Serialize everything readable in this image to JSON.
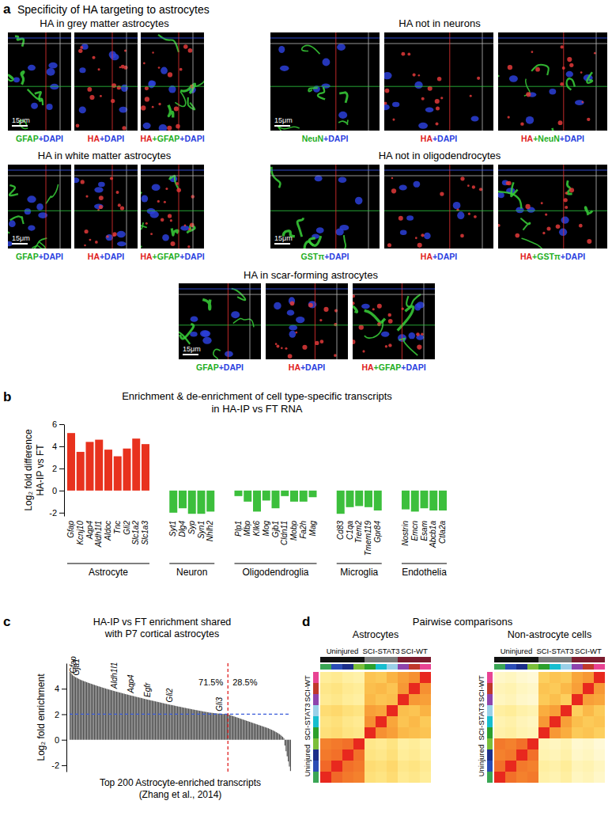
{
  "figure": {
    "letters": [
      "a",
      "b",
      "c",
      "d"
    ],
    "a": {
      "title": "Specificity of HA targeting to astrocytes",
      "scale_bar": "15μm",
      "panels": [
        {
          "title": "HA in grey matter astrocytes",
          "labels": [
            [
              "GFAP",
              "+DAPI"
            ],
            [
              "HA",
              "+DAPI"
            ],
            [
              "HA",
              "+GFAP",
              "+DAPI"
            ]
          ]
        },
        {
          "title": "HA not in neurons",
          "labels": [
            [
              "NeuN",
              "+DAPI"
            ],
            [
              "HA",
              "+DAPI"
            ],
            [
              "HA",
              "+NeuN",
              "+DAPI"
            ]
          ]
        },
        {
          "title": "HA in white matter astrocytes",
          "labels": [
            [
              "GFAP",
              "+DAPI"
            ],
            [
              "HA",
              "+DAPI"
            ],
            [
              "HA",
              "+GFAP",
              "+DAPI"
            ]
          ]
        },
        {
          "title": "HA not in oligodendrocytes",
          "labels": [
            [
              "GSTπ",
              "+DAPI"
            ],
            [
              "HA",
              "+DAPI"
            ],
            [
              "HA",
              "+GSTπ",
              "+DAPI"
            ]
          ]
        },
        {
          "title": "HA in scar-forming astrocytes",
          "labels": [
            [
              "GFAP",
              "+DAPI"
            ],
            [
              "HA",
              "+DAPI"
            ],
            [
              "HA",
              "+GFAP",
              "+DAPI"
            ]
          ]
        }
      ]
    },
    "d_title": "Pairwise comparisons"
  },
  "chart_data": [
    {
      "type": "bar",
      "title": [
        "Enrichment & de-enrichment of cell type-specific transcripts",
        "in HA-IP vs FT RNA"
      ],
      "ylabel": [
        "Log₂ fold difference",
        "HA-IP vs FT"
      ],
      "categories": [
        "Gfap",
        "Kcnj10",
        "Aqp4",
        "Aldh1l1",
        "Aldoc",
        "Tnc",
        "Gli2",
        "Slc1a2",
        "Slc1a3",
        null,
        null,
        "Syt1",
        "Dlg4",
        "Syp",
        "Syn1",
        "Nhlh2",
        null,
        null,
        "Plp1",
        "Mbp",
        "Klk6",
        "Mog",
        "Gjb1",
        "Cldn11",
        "Mobp",
        "Fa2h",
        "Mag",
        null,
        null,
        "Cd83",
        "C1qa",
        "Trem2",
        "Tmem119",
        "Gpr84",
        null,
        null,
        "Nostrin",
        "Emcn",
        "Esam",
        "Abcb1a",
        "Ctla2a"
      ],
      "values": [
        5.2,
        3.5,
        4.4,
        4.6,
        3.7,
        3.1,
        3.8,
        4.7,
        4.2,
        null,
        null,
        -2.0,
        -1.6,
        -2.1,
        -2.1,
        -1.9,
        null,
        null,
        -0.5,
        -1.0,
        -1.9,
        -0.9,
        -1.6,
        -0.5,
        -1.0,
        -1.0,
        -0.6,
        null,
        null,
        -2.1,
        -1.5,
        -1.4,
        -1.5,
        -1.8,
        null,
        null,
        -1.7,
        -1.9,
        -1.6,
        -1.8,
        -1.8
      ],
      "colors": [
        "#e8321e",
        "#e8321e",
        "#e8321e",
        "#e8321e",
        "#e8321e",
        "#e8321e",
        "#e8321e",
        "#e8321e",
        "#e8321e",
        null,
        null,
        "#3cbf3c",
        "#3cbf3c",
        "#3cbf3c",
        "#3cbf3c",
        "#3cbf3c",
        null,
        null,
        "#3cbf3c",
        "#3cbf3c",
        "#3cbf3c",
        "#3cbf3c",
        "#3cbf3c",
        "#3cbf3c",
        "#3cbf3c",
        "#3cbf3c",
        "#3cbf3c",
        null,
        null,
        "#3cbf3c",
        "#3cbf3c",
        "#3cbf3c",
        "#3cbf3c",
        "#3cbf3c",
        null,
        null,
        "#3cbf3c",
        "#3cbf3c",
        "#3cbf3c",
        "#3cbf3c",
        "#3cbf3c"
      ],
      "groups": [
        "Astrocyte",
        "Neuron",
        "Oligodendroglia",
        "Microglia",
        "Endothelia"
      ],
      "ylim": [
        -2.3,
        6
      ],
      "yticks": [
        -2,
        0,
        2,
        4,
        6
      ]
    },
    {
      "type": "bar",
      "title": [
        "HA-IP vs FT enrichment shared",
        "with P7 cortical astrocytes"
      ],
      "ylabel": "Log₂ fold enrichment",
      "xlabel": [
        "Top 200 Astrocyte-enriched transcripts",
        "(Zhang et al., 2014)"
      ],
      "categories": [
        null,
        null,
        null,
        "Gfap",
        null,
        null,
        "Gja1",
        null,
        null,
        null,
        null,
        null,
        null,
        null,
        null,
        null,
        null,
        null,
        null,
        null,
        null,
        null,
        null,
        null,
        null,
        null,
        null,
        null,
        null,
        null,
        null,
        null,
        null,
        null,
        null,
        null,
        null,
        null,
        null,
        null,
        "Aldh1l1",
        null,
        null,
        null,
        null,
        null,
        null,
        null,
        null,
        null,
        null,
        null,
        null,
        null,
        null,
        "Aqp4",
        null,
        null,
        null,
        null,
        null,
        null,
        null,
        null,
        null,
        null,
        null,
        null,
        null,
        null,
        "Egfr",
        null,
        null,
        null,
        null,
        null,
        null,
        null,
        null,
        null,
        null,
        null,
        null,
        null,
        null,
        null,
        null,
        null,
        null,
        null,
        "Gli2",
        null,
        null,
        null,
        null,
        null,
        null,
        null,
        null,
        null,
        null,
        null,
        null,
        null,
        null,
        null,
        null,
        null,
        null,
        null,
        null,
        null,
        null,
        null,
        null,
        null,
        null,
        null,
        null,
        null,
        null,
        null,
        null,
        null,
        null,
        null,
        null,
        null,
        null,
        null,
        null,
        null,
        null,
        null,
        null,
        "Gli3",
        null,
        null,
        null,
        null,
        null,
        null,
        null,
        null,
        null,
        null,
        null,
        null,
        null,
        null,
        null,
        null,
        null,
        null,
        null,
        null,
        null,
        null,
        null,
        null,
        null,
        null,
        null,
        null,
        null,
        null,
        null,
        null,
        null,
        null,
        null,
        null,
        null,
        null,
        null,
        null,
        null,
        null,
        null,
        null,
        null,
        null,
        null,
        null,
        null,
        null,
        null,
        null,
        null,
        null,
        null,
        null,
        null,
        null,
        null,
        null,
        null,
        null,
        null,
        null
      ],
      "values": [
        5.32,
        5.21,
        5.1,
        5.02,
        4.96,
        4.9,
        4.86,
        4.81,
        4.77,
        4.72,
        4.68,
        4.65,
        4.61,
        4.58,
        4.55,
        4.51,
        4.48,
        4.45,
        4.42,
        4.39,
        4.36,
        4.33,
        4.3,
        4.27,
        4.24,
        4.21,
        4.18,
        4.16,
        4.13,
        4.1,
        4.07,
        4.05,
        4.02,
        3.99,
        3.97,
        3.94,
        3.92,
        3.89,
        3.87,
        3.84,
        3.82,
        3.79,
        3.77,
        3.75,
        3.72,
        3.7,
        3.68,
        3.65,
        3.63,
        3.61,
        3.58,
        3.56,
        3.54,
        3.52,
        3.49,
        3.47,
        3.45,
        3.43,
        3.41,
        3.38,
        3.36,
        3.34,
        3.32,
        3.3,
        3.28,
        3.26,
        3.23,
        3.21,
        3.19,
        3.17,
        3.15,
        3.13,
        3.11,
        3.09,
        3.07,
        3.05,
        3.03,
        3.01,
        2.99,
        2.97,
        2.95,
        2.93,
        2.91,
        2.89,
        2.87,
        2.85,
        2.83,
        2.81,
        2.79,
        2.77,
        2.75,
        2.73,
        2.72,
        2.7,
        2.68,
        2.66,
        2.64,
        2.62,
        2.6,
        2.59,
        2.57,
        2.55,
        2.53,
        2.51,
        2.5,
        2.48,
        2.46,
        2.44,
        2.43,
        2.41,
        2.39,
        2.37,
        2.36,
        2.34,
        2.32,
        2.31,
        2.29,
        2.27,
        2.26,
        2.24,
        2.22,
        2.21,
        2.19,
        2.18,
        2.16,
        2.15,
        2.13,
        2.12,
        2.11,
        2.1,
        2.09,
        2.08,
        2.07,
        2.06,
        2.05,
        2.05,
        2.04,
        2.03,
        2.03,
        2.02,
        2.02,
        2.01,
        2.0,
        1.98,
        1.95,
        1.92,
        1.89,
        1.86,
        1.83,
        1.8,
        1.77,
        1.74,
        1.71,
        1.68,
        1.65,
        1.62,
        1.59,
        1.56,
        1.53,
        1.5,
        1.47,
        1.44,
        1.41,
        1.38,
        1.35,
        1.32,
        1.29,
        1.26,
        1.23,
        1.2,
        1.17,
        1.14,
        1.11,
        1.08,
        1.05,
        1.02,
        0.99,
        0.96,
        0.93,
        0.9,
        0.86,
        0.82,
        0.78,
        0.74,
        0.7,
        0.65,
        0.6,
        0.55,
        0.5,
        0.44,
        0.38,
        0.3,
        0.22,
        0.12,
        -0.45,
        -0.9,
        -1.3,
        -1.7,
        -2.1,
        -2.45
      ],
      "color": "#555555",
      "ylim": [
        -2.5,
        6
      ],
      "yticks": [
        -2,
        0,
        2,
        4
      ],
      "reference_lines": [
        {
          "axis": "y",
          "value": 2,
          "color": "#3a5bd9",
          "line_style": "dashed"
        },
        {
          "axis": "x",
          "value": 142.5,
          "color": "#e02020",
          "line_style": "dashed"
        }
      ],
      "annotations": [
        {
          "text": "71.5%"
        },
        {
          "text": "28.5%"
        }
      ]
    },
    {
      "type": "heatmap",
      "title": "Astrocytes",
      "groups": [
        {
          "name": "Uninjured",
          "color": "#111111",
          "colors": [
            "#3aa655",
            "#2b4db5",
            "#1c2f8a",
            "#7bbf3a"
          ]
        },
        {
          "name": "SCI-STAT3",
          "color": "#7a7a7a",
          "colors": [
            "#2ca02c",
            "#17becf",
            "#9ad0e8"
          ]
        },
        {
          "name": "SCI-WT",
          "color": "#7b1c2e",
          "colors": [
            "#8e44ad",
            "#c0392b",
            "#e84393"
          ]
        }
      ],
      "zlim": [
        0.6,
        1
      ],
      "z": [
        [
          1,
          0.93,
          0.91,
          0.9,
          0.74,
          0.73,
          0.75,
          0.71,
          0.72,
          0.7
        ],
        [
          0.93,
          1,
          0.92,
          0.91,
          0.75,
          0.74,
          0.76,
          0.72,
          0.73,
          0.71
        ],
        [
          0.91,
          0.92,
          1,
          0.92,
          0.73,
          0.72,
          0.74,
          0.7,
          0.71,
          0.69
        ],
        [
          0.9,
          0.91,
          0.92,
          1,
          0.72,
          0.71,
          0.73,
          0.69,
          0.7,
          0.68
        ],
        [
          0.74,
          0.75,
          0.73,
          0.72,
          1,
          0.88,
          0.86,
          0.82,
          0.81,
          0.8
        ],
        [
          0.73,
          0.74,
          0.72,
          0.71,
          0.88,
          1,
          0.85,
          0.8,
          0.82,
          0.79
        ],
        [
          0.75,
          0.76,
          0.74,
          0.73,
          0.86,
          0.85,
          1,
          0.81,
          0.8,
          0.83
        ],
        [
          0.71,
          0.72,
          0.7,
          0.69,
          0.82,
          0.8,
          0.81,
          1,
          0.87,
          0.86
        ],
        [
          0.72,
          0.73,
          0.71,
          0.7,
          0.81,
          0.82,
          0.8,
          0.87,
          1,
          0.88
        ],
        [
          0.7,
          0.71,
          0.69,
          0.68,
          0.8,
          0.79,
          0.83,
          0.86,
          0.88,
          1
        ]
      ]
    },
    {
      "type": "heatmap",
      "title": "Non-astrocyte cells",
      "groups": [
        {
          "name": "Uninjured",
          "color": "#111111",
          "colors": [
            "#3aa655",
            "#2b4db5",
            "#1c2f8a",
            "#7bbf3a"
          ]
        },
        {
          "name": "SCI-STAT3",
          "color": "#7a7a7a",
          "colors": [
            "#2ca02c",
            "#17becf",
            "#9ad0e8"
          ]
        },
        {
          "name": "SCI-WT",
          "color": "#7b1c2e",
          "colors": [
            "#8e44ad",
            "#c0392b",
            "#e84393"
          ]
        }
      ],
      "zlim": [
        0.6,
        1
      ],
      "z": [
        [
          1,
          0.92,
          0.9,
          0.91,
          0.68,
          0.67,
          0.69,
          0.65,
          0.66,
          0.64
        ],
        [
          0.92,
          1,
          0.91,
          0.9,
          0.69,
          0.68,
          0.7,
          0.66,
          0.67,
          0.65
        ],
        [
          0.9,
          0.91,
          1,
          0.92,
          0.67,
          0.66,
          0.68,
          0.64,
          0.65,
          0.63
        ],
        [
          0.91,
          0.9,
          0.92,
          1,
          0.66,
          0.65,
          0.67,
          0.63,
          0.64,
          0.62
        ],
        [
          0.68,
          0.69,
          0.67,
          0.66,
          1,
          0.87,
          0.84,
          0.79,
          0.8,
          0.78
        ],
        [
          0.67,
          0.68,
          0.66,
          0.65,
          0.87,
          1,
          0.86,
          0.81,
          0.79,
          0.8
        ],
        [
          0.69,
          0.7,
          0.68,
          0.67,
          0.84,
          0.86,
          1,
          0.78,
          0.82,
          0.79
        ],
        [
          0.65,
          0.66,
          0.64,
          0.63,
          0.79,
          0.81,
          0.78,
          1,
          0.86,
          0.85
        ],
        [
          0.66,
          0.67,
          0.65,
          0.64,
          0.8,
          0.79,
          0.82,
          0.86,
          1,
          0.87
        ],
        [
          0.64,
          0.65,
          0.63,
          0.62,
          0.78,
          0.8,
          0.79,
          0.85,
          0.87,
          1
        ]
      ]
    }
  ]
}
